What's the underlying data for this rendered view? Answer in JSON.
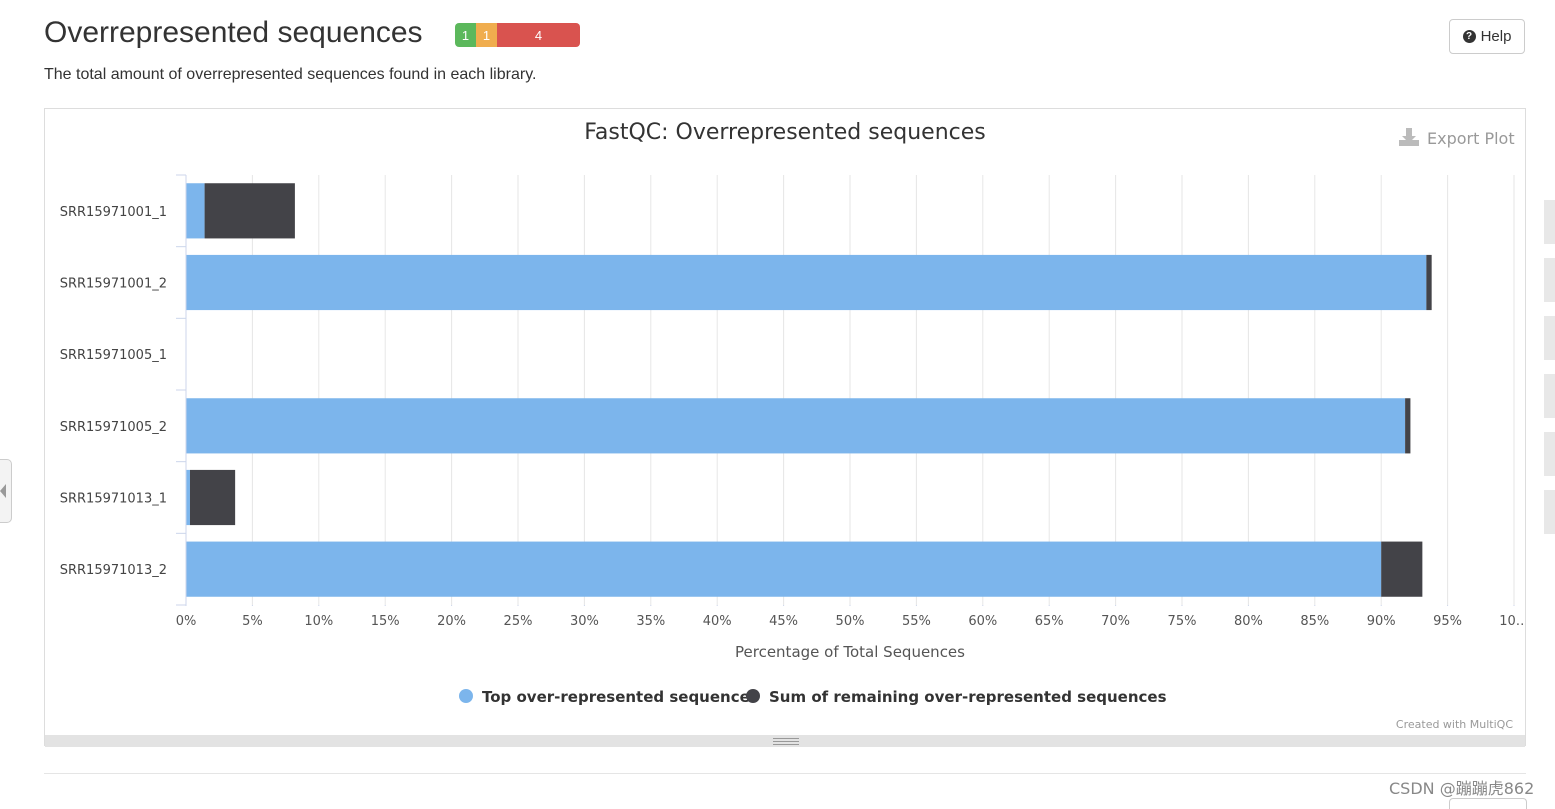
{
  "header": {
    "title": "Overrepresented sequences",
    "status": {
      "pass": "1",
      "warn": "1",
      "fail": "4"
    },
    "help_label": "Help",
    "description": "The total amount of overrepresented sequences found in each library."
  },
  "export_label": "Export Plot",
  "credit": "Created with MultiQC",
  "watermark": "CSDN @蹦蹦虎862",
  "colors": {
    "top": "#7cb5ec",
    "remaining": "#434348",
    "pass": "#5cb85c",
    "warn": "#f0ad4e",
    "fail": "#d9534f"
  },
  "chart_data": {
    "type": "bar",
    "orientation": "horizontal",
    "stacked": true,
    "title": "FastQC: Overrepresented sequences",
    "xlabel": "Percentage of Total Sequences",
    "ylabel": "",
    "xlim": [
      0,
      100
    ],
    "tick_labels": [
      "0%",
      "5%",
      "10%",
      "15%",
      "20%",
      "25%",
      "30%",
      "35%",
      "40%",
      "45%",
      "50%",
      "55%",
      "60%",
      "65%",
      "70%",
      "75%",
      "80%",
      "85%",
      "90%",
      "95%",
      "10…"
    ],
    "categories": [
      "SRR15971001_1",
      "SRR15971001_2",
      "SRR15971005_1",
      "SRR15971005_2",
      "SRR15971013_1",
      "SRR15971013_2"
    ],
    "series": [
      {
        "name": "Top over-represented sequence",
        "values": [
          1.4,
          93.4,
          0,
          91.8,
          0.3,
          90.0
        ]
      },
      {
        "name": "Sum of remaining over-represented sequences",
        "values": [
          6.8,
          0.4,
          0,
          0.4,
          3.4,
          3.1
        ]
      }
    ],
    "legend": "bottom-center",
    "grid": true
  }
}
